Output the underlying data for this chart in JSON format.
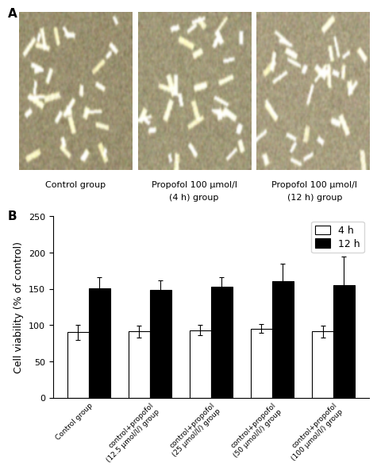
{
  "panel_A_label": "A",
  "panel_B_label": "B",
  "caption_line1": [
    "Control group",
    "Propofol 100 μmol/l",
    "Propofol 100 μmol/l"
  ],
  "caption_line2": [
    "",
    "(4 h) group",
    "(12 h) group"
  ],
  "categories": [
    "Control group",
    "control+propofol\n(12.5 μmol/l/) group",
    "control+propofol\n(25 μmol/l/) group",
    "control+propofol\n(50 μmol/l/) group",
    "control+propofol\n(100 μmol/l/) group"
  ],
  "values_4h": [
    90,
    91,
    93,
    95,
    91
  ],
  "values_12h": [
    151,
    148,
    153,
    160,
    155
  ],
  "errors_4h": [
    10,
    8,
    7,
    6,
    8
  ],
  "errors_12h": [
    15,
    14,
    13,
    25,
    40
  ],
  "ylabel": "Cell viability (% of control)",
  "ylim": [
    0,
    250
  ],
  "yticks": [
    0,
    50,
    100,
    150,
    200,
    250
  ],
  "legend_labels": [
    "4 h",
    "12 h"
  ],
  "bar_width": 0.35,
  "color_4h": "#ffffff",
  "color_12h": "#000000",
  "edge_color": "#000000",
  "axis_fontsize": 9,
  "tick_fontsize": 8,
  "legend_fontsize": 9,
  "img_bg_colors": [
    "#9a9070",
    "#a09878",
    "#a89e80"
  ],
  "img_noise_seeds": [
    1,
    2,
    3
  ]
}
